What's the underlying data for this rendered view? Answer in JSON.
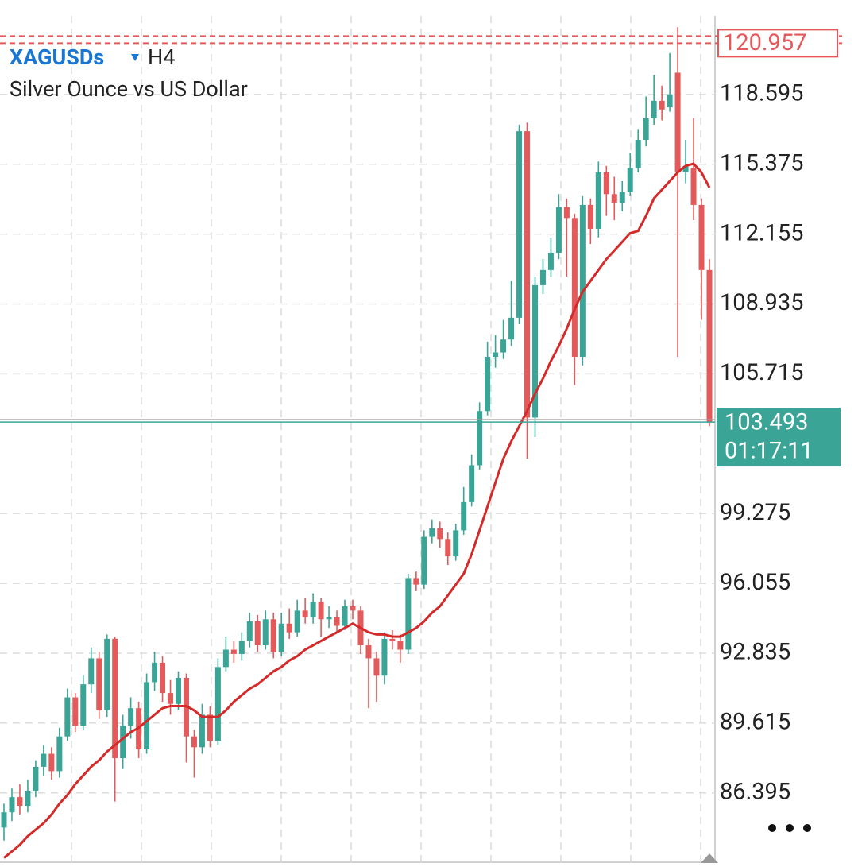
{
  "chart_data": {
    "type": "candlestick",
    "symbol": "XAGUSDs",
    "timeframe": "H4",
    "description": "Silver Ounce vs US Dollar",
    "up_color": "#3aa597",
    "down_color": "#e45a5a",
    "ylim": [
      83.2,
      121.85
    ],
    "yticks": [
      86.395,
      89.615,
      92.835,
      96.055,
      99.275,
      105.715,
      108.935,
      112.155,
      115.375,
      118.595
    ],
    "grid": true,
    "open": [
      84.8,
      85.5,
      86.2,
      85.8,
      86.5,
      87.6,
      88.2,
      87.4,
      89.0,
      90.8,
      89.5,
      91.4,
      92.6,
      90.2,
      93.5,
      88.0,
      89.5,
      90.3,
      88.4,
      91.5,
      92.4,
      91.0,
      90.5,
      91.7,
      89.0,
      88.5,
      90.0,
      88.8,
      92.2,
      93.0,
      92.8,
      93.4,
      94.3,
      93.2,
      94.4,
      92.9,
      94.2,
      93.8,
      94.8,
      94.5,
      95.2,
      94.4,
      94.5,
      94.1,
      95.0,
      94.8,
      93.2,
      92.6,
      91.8,
      93.5,
      93.4,
      93.0,
      96.3,
      96.0,
      98.2,
      98.6,
      98.1,
      97.3,
      98.5,
      99.8,
      101.5,
      104.0,
      106.5,
      106.7,
      107.3,
      108.3,
      116.9,
      103.7,
      109.8,
      110.5,
      111.3,
      113.4,
      112.9,
      106.5,
      113.5,
      112.4,
      115.0,
      114.0,
      113.6,
      114.1,
      115.2,
      116.5,
      117.5,
      118.3,
      118.0,
      119.6,
      115.0,
      115.2,
      113.5,
      110.5
    ],
    "high": [
      85.9,
      86.6,
      86.8,
      87.0,
      87.9,
      88.6,
      88.5,
      89.4,
      91.2,
      91.0,
      91.8,
      93.1,
      92.9,
      93.7,
      93.6,
      90.0,
      90.8,
      90.6,
      91.9,
      92.9,
      92.7,
      91.6,
      92.0,
      91.9,
      89.3,
      90.5,
      90.4,
      92.6,
      93.6,
      93.4,
      93.8,
      94.7,
      94.6,
      94.8,
      94.7,
      94.7,
      94.9,
      95.3,
      95.4,
      95.6,
      95.4,
      95.0,
      94.8,
      95.3,
      95.3,
      95.0,
      93.5,
      92.9,
      93.8,
      93.9,
      93.7,
      96.5,
      96.6,
      98.5,
      99.0,
      98.9,
      98.4,
      98.8,
      100.5,
      102.0,
      104.4,
      107.2,
      107.5,
      108.2,
      110.0,
      117.2,
      117.3,
      110.2,
      111.0,
      112.0,
      114.0,
      113.8,
      113.1,
      113.9,
      113.8,
      115.5,
      115.3,
      114.8,
      114.6,
      115.9,
      117.0,
      118.5,
      119.5,
      119.0,
      120.5,
      121.7,
      116.5,
      117.5,
      113.8,
      111.0
    ],
    "low": [
      84.2,
      85.1,
      85.4,
      85.5,
      86.2,
      87.2,
      87.0,
      87.1,
      88.8,
      89.2,
      89.3,
      91.0,
      89.8,
      89.9,
      86.0,
      87.5,
      88.9,
      88.0,
      88.2,
      91.1,
      90.6,
      90.0,
      90.2,
      87.8,
      87.1,
      88.2,
      88.5,
      88.6,
      92.0,
      92.4,
      92.5,
      93.1,
      92.9,
      93.0,
      92.6,
      92.7,
      93.5,
      93.6,
      94.2,
      94.2,
      93.6,
      94.0,
      93.8,
      93.9,
      94.4,
      92.8,
      90.3,
      90.6,
      91.4,
      93.0,
      92.4,
      92.8,
      95.7,
      95.8,
      97.9,
      97.7,
      96.9,
      97.1,
      98.3,
      99.6,
      101.3,
      103.8,
      106.0,
      106.4,
      107.0,
      108.0,
      101.8,
      102.8,
      109.4,
      110.2,
      111.0,
      110.2,
      105.2,
      106.1,
      111.7,
      112.0,
      113.0,
      112.8,
      113.2,
      113.9,
      115.0,
      116.2,
      117.2,
      117.4,
      117.8,
      106.5,
      114.5,
      112.8,
      108.2,
      103.3
    ],
    "close": [
      85.5,
      86.2,
      85.8,
      86.5,
      87.6,
      88.2,
      87.4,
      89.0,
      90.8,
      89.5,
      91.4,
      92.6,
      90.2,
      93.5,
      88.0,
      89.5,
      90.3,
      88.4,
      91.5,
      92.4,
      91.0,
      90.5,
      91.7,
      89.0,
      88.5,
      90.0,
      88.8,
      92.2,
      93.0,
      92.8,
      93.4,
      94.3,
      93.2,
      94.4,
      92.9,
      94.2,
      93.8,
      94.8,
      94.5,
      95.2,
      94.4,
      94.5,
      94.1,
      95.0,
      94.8,
      93.2,
      92.6,
      91.8,
      93.5,
      93.4,
      93.0,
      96.3,
      96.0,
      98.2,
      98.6,
      98.1,
      97.3,
      98.5,
      99.8,
      101.5,
      104.0,
      106.5,
      106.7,
      107.3,
      108.3,
      116.9,
      103.7,
      109.8,
      110.5,
      111.3,
      113.4,
      112.9,
      106.5,
      113.5,
      112.4,
      115.0,
      114.0,
      113.6,
      114.1,
      115.2,
      116.5,
      117.5,
      118.3,
      117.9,
      118.6,
      115.0,
      115.3,
      113.5,
      110.5,
      103.5
    ],
    "ma": {
      "color": "#d42a2a",
      "values": [
        83.4,
        83.7,
        84.0,
        84.4,
        84.7,
        85.0,
        85.4,
        85.9,
        86.3,
        86.8,
        87.2,
        87.6,
        87.9,
        88.3,
        88.6,
        88.9,
        89.2,
        89.4,
        89.7,
        90.0,
        90.3,
        90.4,
        90.4,
        90.4,
        90.2,
        89.9,
        89.9,
        89.9,
        90.2,
        90.6,
        90.9,
        91.2,
        91.4,
        91.7,
        92.0,
        92.2,
        92.5,
        92.7,
        93.0,
        93.2,
        93.4,
        93.6,
        93.8,
        94.0,
        94.2,
        94.0,
        93.8,
        93.7,
        93.7,
        93.6,
        93.6,
        93.8,
        94.0,
        94.3,
        94.7,
        95.0,
        95.5,
        96.0,
        96.5,
        97.4,
        98.5,
        99.6,
        100.7,
        101.8,
        102.6,
        103.3,
        104.0,
        104.8,
        105.5,
        106.3,
        107.0,
        107.8,
        108.7,
        109.5,
        110.0,
        110.5,
        111.0,
        111.4,
        111.8,
        112.2,
        112.3,
        113.0,
        113.8,
        114.2,
        114.6,
        115.0,
        115.3,
        115.4,
        115.0,
        114.3
      ]
    },
    "current_price": 103.493,
    "countdown": "01:17:11",
    "price_line": 120.957
  }
}
